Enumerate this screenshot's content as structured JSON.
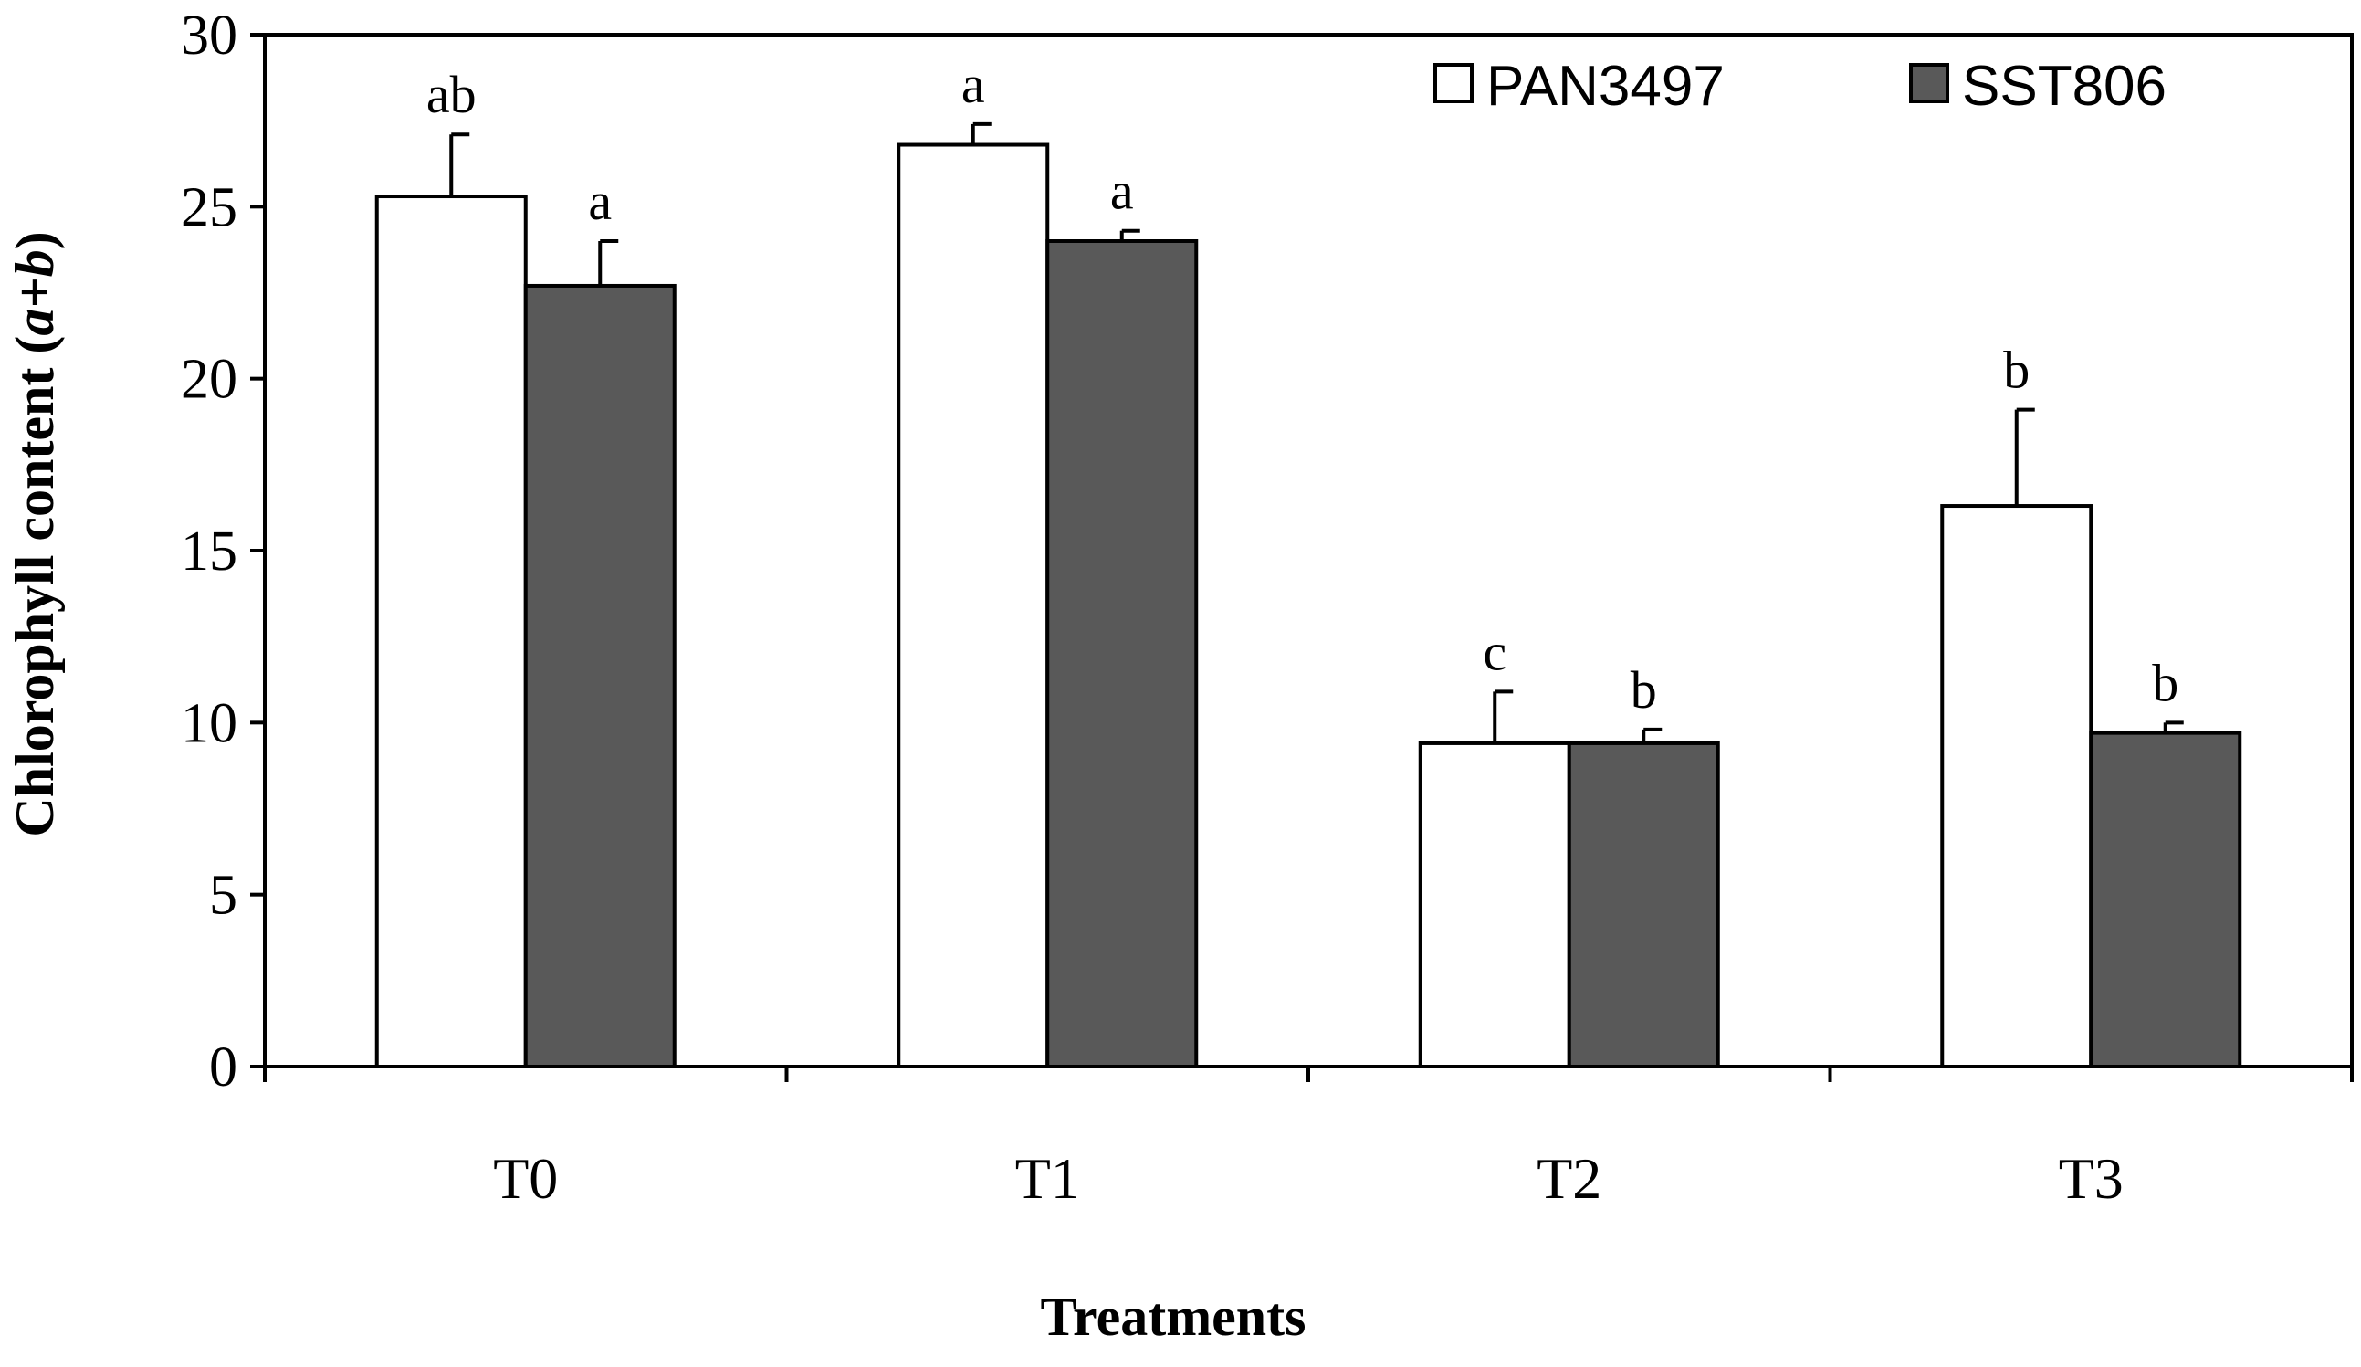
{
  "chart_data": {
    "type": "bar",
    "title": "",
    "xlabel": "Treatments",
    "ylabel_parts": [
      "Chlorophyll content (",
      "a+b",
      ")"
    ],
    "categories": [
      "T0",
      "T1",
      "T2",
      "T3"
    ],
    "ylim": [
      0,
      30
    ],
    "yticks": [
      0,
      5,
      10,
      15,
      20,
      25,
      30
    ],
    "legend_position": "top-right",
    "series": [
      {
        "name": "PAN3497",
        "color": "#ffffff",
        "values": [
          25.3,
          26.8,
          9.4,
          16.3
        ],
        "errors": [
          1.8,
          0.6,
          1.5,
          2.8
        ],
        "letters": [
          "ab",
          "a",
          "c",
          "b"
        ]
      },
      {
        "name": "SST806",
        "color": "#595959",
        "values": [
          22.7,
          24.0,
          9.4,
          9.7
        ],
        "errors": [
          1.3,
          0.3,
          0.4,
          0.3
        ],
        "letters": [
          "a",
          "a",
          "b",
          "b"
        ]
      }
    ]
  }
}
